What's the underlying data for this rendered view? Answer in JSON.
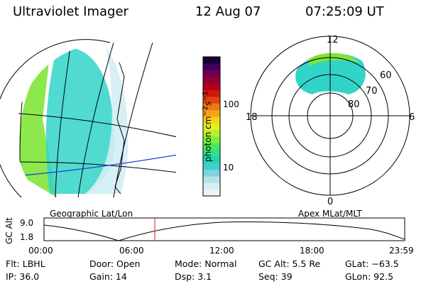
{
  "header": {
    "instrument": "Ultraviolet Imager",
    "date": "12 Aug 07",
    "time": "07:25:09 UT"
  },
  "colorbar": {
    "unit_label": "photon cm",
    "unit_exp1": "−2",
    "unit_s": "s",
    "unit_exp2": "−1",
    "ticks": [
      "100",
      "10"
    ],
    "colors": [
      "#f2f2f2",
      "#d7eef4",
      "#b5e2ea",
      "#7fd3de",
      "#3ecfd0",
      "#22d6b0",
      "#2fe08a",
      "#4ae860",
      "#7fee3c",
      "#b6f02c",
      "#e4f020",
      "#f8d21a",
      "#f7a318",
      "#f07612",
      "#e2430e",
      "#cc1b0c",
      "#b3001a",
      "#93002f",
      "#6d0050",
      "#43005e",
      "#1a0036"
    ]
  },
  "left_panel": {
    "caption": "Geographic Lat/Lon",
    "track_color": "#1f3cd8",
    "outline_color": "#000000"
  },
  "right_panel": {
    "caption": "Apex MLat/MLT",
    "mlt_labels": {
      "top": "12",
      "left": "18",
      "right": "6",
      "bottom": "0"
    },
    "mlat_labels": [
      "60",
      "70",
      "80"
    ]
  },
  "altitude_plot": {
    "ylabel": "GC Alt",
    "yticks": [
      "9.0",
      "1.8"
    ],
    "xticks": [
      "00:00",
      "06:00",
      "12:00",
      "18:00",
      "23:59"
    ],
    "marker_color": "#cc2222"
  },
  "footer": {
    "flt": "Flt: LBHL",
    "ip": "IP: 36.0",
    "door": "Door: Open",
    "gain": "Gain: 14",
    "mode": "Mode: Normal",
    "dsp": "Dsp:    3.1",
    "gcalt": "GC Alt: 5.5 Re",
    "seq": "Seq: 39",
    "glat": "GLat: −63.5",
    "glon": "GLon:  92.5"
  }
}
